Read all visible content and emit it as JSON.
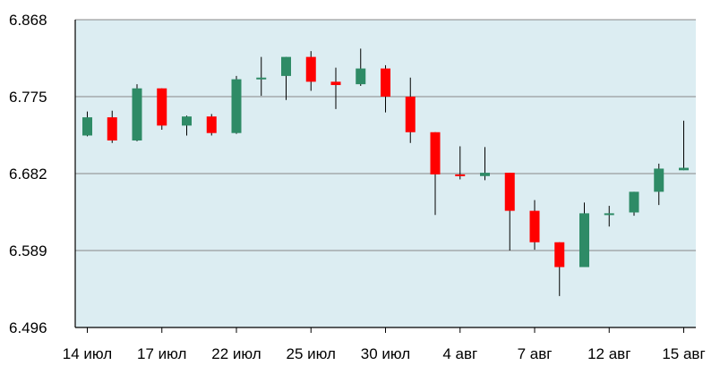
{
  "chart_data": {
    "type": "candlestick",
    "title": "",
    "xlabel": "",
    "ylabel": "",
    "ylim": [
      6.496,
      6.868
    ],
    "y_ticks": [
      "6.868",
      "6.775",
      "6.682",
      "6.589",
      "6.496"
    ],
    "x_tick_labels": [
      {
        "label": "14 июл",
        "index": 0
      },
      {
        "label": "17 июл",
        "index": 3
      },
      {
        "label": "22 июл",
        "index": 6
      },
      {
        "label": "25 июл",
        "index": 9
      },
      {
        "label": "30 июл",
        "index": 12
      },
      {
        "label": "4 авг",
        "index": 15
      },
      {
        "label": "7 авг",
        "index": 18
      },
      {
        "label": "12 авг",
        "index": 21
      },
      {
        "label": "15 авг",
        "index": 24
      }
    ],
    "grid": true,
    "plot_background": "#dcedf2",
    "colors": {
      "up": "#2e8b66",
      "down": "#ff0000",
      "wick": "#000000",
      "grid": "#888888"
    },
    "candles": [
      {
        "o": 6.728,
        "h": 6.757,
        "l": 6.727,
        "c": 6.75
      },
      {
        "o": 6.75,
        "h": 6.758,
        "l": 6.719,
        "c": 6.722
      },
      {
        "o": 6.722,
        "h": 6.79,
        "l": 6.721,
        "c": 6.785
      },
      {
        "o": 6.785,
        "h": 6.785,
        "l": 6.735,
        "c": 6.74
      },
      {
        "o": 6.74,
        "h": 6.752,
        "l": 6.728,
        "c": 6.751
      },
      {
        "o": 6.751,
        "h": 6.754,
        "l": 6.728,
        "c": 6.731
      },
      {
        "o": 6.731,
        "h": 6.8,
        "l": 6.73,
        "c": 6.796
      },
      {
        "o": 6.796,
        "h": 6.823,
        "l": 6.776,
        "c": 6.798
      },
      {
        "o": 6.8,
        "h": 6.823,
        "l": 6.771,
        "c": 6.823
      },
      {
        "o": 6.823,
        "h": 6.83,
        "l": 6.782,
        "c": 6.793
      },
      {
        "o": 6.793,
        "h": 6.81,
        "l": 6.76,
        "c": 6.789
      },
      {
        "o": 6.79,
        "h": 6.833,
        "l": 6.788,
        "c": 6.809
      },
      {
        "o": 6.809,
        "h": 6.813,
        "l": 6.756,
        "c": 6.775
      },
      {
        "o": 6.775,
        "h": 6.798,
        "l": 6.719,
        "c": 6.732
      },
      {
        "o": 6.732,
        "h": 6.732,
        "l": 6.632,
        "c": 6.681
      },
      {
        "o": 6.681,
        "h": 6.715,
        "l": 6.675,
        "c": 6.679
      },
      {
        "o": 6.679,
        "h": 6.714,
        "l": 6.674,
        "c": 6.683
      },
      {
        "o": 6.683,
        "h": 6.683,
        "l": 6.589,
        "c": 6.637
      },
      {
        "o": 6.637,
        "h": 6.65,
        "l": 6.59,
        "c": 6.599
      },
      {
        "o": 6.599,
        "h": 6.599,
        "l": 6.534,
        "c": 6.569
      },
      {
        "o": 6.569,
        "h": 6.647,
        "l": 6.569,
        "c": 6.634
      },
      {
        "o": 6.634,
        "h": 6.643,
        "l": 6.618,
        "c": 6.634
      },
      {
        "o": 6.635,
        "h": 6.66,
        "l": 6.631,
        "c": 6.66
      },
      {
        "o": 6.66,
        "h": 6.694,
        "l": 6.644,
        "c": 6.688
      },
      {
        "o": 6.686,
        "h": 6.746,
        "l": 6.686,
        "c": 6.689
      }
    ]
  }
}
